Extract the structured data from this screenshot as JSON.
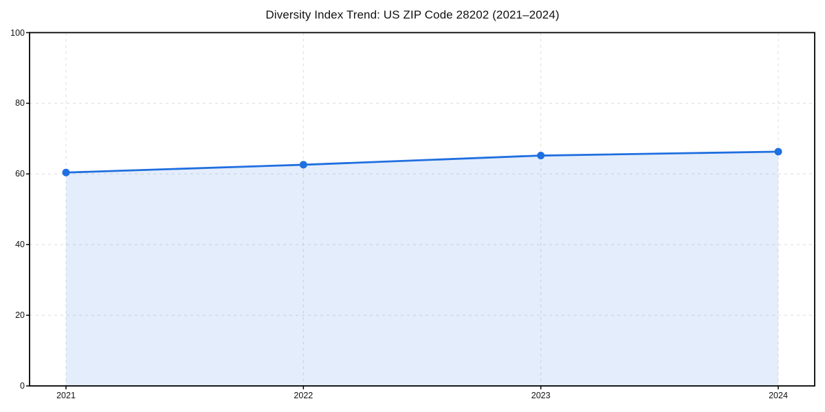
{
  "page": {
    "background": "#ffffff"
  },
  "chart_data": {
    "type": "line",
    "title": "Diversity Index Trend: US ZIP Code 28202 (2021–2024)",
    "x": [
      "2021",
      "2022",
      "2023",
      "2024"
    ],
    "series": [
      {
        "name": "Diversity Index",
        "values": [
          60.4,
          62.6,
          65.2,
          66.3
        ]
      }
    ],
    "xlabel": "",
    "ylabel": "",
    "ylim": [
      0,
      100
    ],
    "yticks": [
      0,
      20,
      40,
      60,
      80,
      100
    ],
    "ytick_labels": [
      "0",
      "20",
      "40",
      "60",
      "80",
      "100"
    ],
    "xtick_labels": [
      "2021",
      "2022",
      "2023",
      "2024"
    ],
    "grid": true,
    "grid_style": "dashed",
    "legend": false,
    "area_fill": true,
    "marker": "circle",
    "colors": {
      "line": "#1f6fe0",
      "marker": "#1f6fe0",
      "area_fill": "#1f6fe0",
      "area_fill_opacity": 0.12,
      "grid": "#dcdcdc",
      "spine": "#000000",
      "text": "#111111"
    }
  }
}
